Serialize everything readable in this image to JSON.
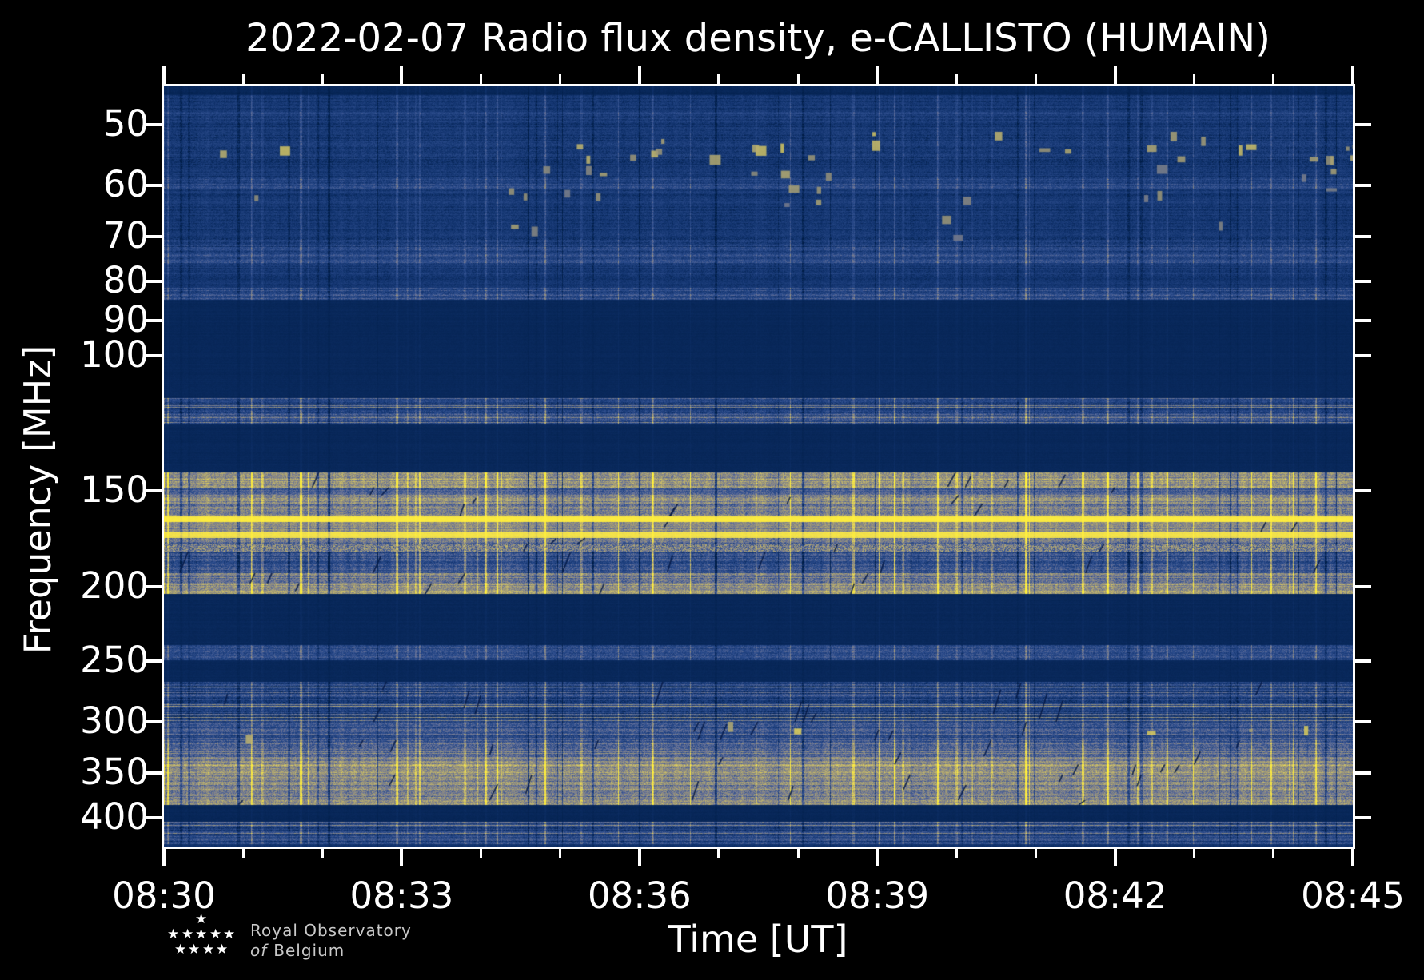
{
  "figure": {
    "background": "#000000",
    "foreground": "#ffffff"
  },
  "chart_data": {
    "type": "heatmap",
    "subtype": "radio-spectrogram",
    "title": "2022-02-07 Radio flux density, e-CALLISTO (HUMAIN)",
    "date": "2022-02-07",
    "station": "HUMAIN",
    "xlabel": "Time [UT]",
    "ylabel": "Frequency [MHz]",
    "x_axis": {
      "start": "08:30",
      "end": "08:45",
      "total_minutes": 15,
      "major_tick_minutes": 3,
      "minor_tick_minutes": 1,
      "major_ticks": [
        "08:30",
        "08:33",
        "08:36",
        "08:39",
        "08:42",
        "08:45"
      ]
    },
    "y_axis": {
      "scale": "log",
      "unit": "MHz",
      "inverted_low_at_top": true,
      "range_mhz": [
        44.6,
        436
      ],
      "ticks": [
        50,
        60,
        70,
        80,
        90,
        100,
        150,
        200,
        250,
        300,
        350,
        400
      ]
    },
    "grid": false,
    "legend": "none",
    "colormap": {
      "name": "cividis-like",
      "stops": [
        [
          0.0,
          "#001d47"
        ],
        [
          0.12,
          "#11336e"
        ],
        [
          0.3,
          "#2e4e8e"
        ],
        [
          0.45,
          "#6b7498"
        ],
        [
          0.58,
          "#999479"
        ],
        [
          0.72,
          "#c4b86d"
        ],
        [
          0.85,
          "#eedd4f"
        ],
        [
          1.0,
          "#ffef3c"
        ]
      ]
    },
    "bands": [
      {
        "f0": 44.6,
        "f1": 45.8,
        "base": 0.06,
        "row": 0.015,
        "col": 0.02,
        "px": 0.015,
        "diag": false
      },
      {
        "f0": 45.8,
        "f1": 48.2,
        "base": 0.15,
        "row": 0.05,
        "col": 0.08,
        "px": 0.06,
        "diag": false
      },
      {
        "f0": 48.2,
        "f1": 49.8,
        "base": 0.21,
        "row": 0.07,
        "col": 0.08,
        "px": 0.07,
        "diag": false
      },
      {
        "f0": 49.8,
        "f1": 51.5,
        "base": 0.15,
        "row": 0.05,
        "col": 0.08,
        "px": 0.06,
        "diag": false
      },
      {
        "f0": 51.5,
        "f1": 56.2,
        "base": 0.16,
        "row": 0.05,
        "col": 0.09,
        "px": 0.07,
        "diag": false,
        "blobs": {
          "density": 0.02,
          "value": 0.68,
          "bias": "right"
        }
      },
      {
        "f0": 56.2,
        "f1": 58.6,
        "base": 0.15,
        "row": 0.05,
        "col": 0.08,
        "px": 0.06,
        "diag": false,
        "blobs": {
          "density": 0.006,
          "value": 0.58
        }
      },
      {
        "f0": 58.6,
        "f1": 60.6,
        "base": 0.23,
        "row": 0.08,
        "col": 0.1,
        "px": 0.08,
        "diag": false
      },
      {
        "f0": 60.6,
        "f1": 63.6,
        "base": 0.16,
        "row": 0.05,
        "col": 0.08,
        "px": 0.06,
        "diag": false,
        "blobs": {
          "density": 0.008,
          "value": 0.6
        }
      },
      {
        "f0": 63.6,
        "f1": 70.4,
        "base": 0.15,
        "row": 0.05,
        "col": 0.08,
        "px": 0.06,
        "diag": false,
        "blobs": {
          "density": 0.004,
          "value": 0.55
        }
      },
      {
        "f0": 70.4,
        "f1": 73.4,
        "base": 0.2,
        "row": 0.09,
        "col": 0.1,
        "px": 0.08,
        "diag": false
      },
      {
        "f0": 73.4,
        "f1": 76.2,
        "base": 0.26,
        "row": 0.09,
        "col": 0.1,
        "px": 0.08,
        "diag": false
      },
      {
        "f0": 76.2,
        "f1": 79.0,
        "base": 0.16,
        "row": 0.05,
        "col": 0.08,
        "px": 0.06,
        "diag": false
      },
      {
        "f0": 79.0,
        "f1": 81.6,
        "base": 0.13,
        "row": 0.04,
        "col": 0.06,
        "px": 0.05,
        "diag": false
      },
      {
        "f0": 81.6,
        "f1": 84.5,
        "base": 0.28,
        "row": 0.11,
        "col": 0.1,
        "px": 0.09,
        "diag": false
      },
      {
        "f0": 84.5,
        "f1": 113.5,
        "base": 0.06,
        "row": 0.008,
        "col": 0.01,
        "px": 0.01,
        "diag": false
      },
      {
        "f0": 113.5,
        "f1": 118.0,
        "base": 0.19,
        "row": 0.07,
        "col": 0.12,
        "px": 0.09,
        "diag": false,
        "rb": 0.2
      },
      {
        "f0": 118.0,
        "f1": 123.0,
        "base": 0.27,
        "row": 0.09,
        "col": 0.14,
        "px": 0.1,
        "diag": false,
        "rb": 0.25
      },
      {
        "f0": 123.0,
        "f1": 142.0,
        "base": 0.06,
        "row": 0.008,
        "col": 0.01,
        "px": 0.01,
        "diag": false
      },
      {
        "f0": 142.0,
        "f1": 148.5,
        "base": 0.58,
        "row": 0.09,
        "col": 0.26,
        "px": 0.12,
        "diag": true
      },
      {
        "f0": 148.5,
        "f1": 152.0,
        "base": 0.37,
        "row": 0.07,
        "col": 0.15,
        "px": 0.1,
        "diag": true
      },
      {
        "f0": 152.0,
        "f1": 156.0,
        "base": 0.53,
        "row": 0.09,
        "col": 0.22,
        "px": 0.12,
        "diag": true
      },
      {
        "f0": 156.0,
        "f1": 161.8,
        "base": 0.5,
        "row": 0.09,
        "col": 0.2,
        "px": 0.12,
        "diag": true
      },
      {
        "f0": 161.8,
        "f1": 164.8,
        "base": 0.95,
        "row": 0.02,
        "col": 0.05,
        "px": 0.03,
        "diag": false
      },
      {
        "f0": 164.8,
        "f1": 169.6,
        "base": 0.54,
        "row": 0.07,
        "col": 0.18,
        "px": 0.1,
        "diag": true
      },
      {
        "f0": 169.6,
        "f1": 172.9,
        "base": 0.88,
        "row": 0.03,
        "col": 0.07,
        "px": 0.04,
        "diag": false
      },
      {
        "f0": 172.9,
        "f1": 176.0,
        "base": 0.44,
        "row": 0.11,
        "col": 0.2,
        "px": 0.12,
        "diag": true
      },
      {
        "f0": 176.0,
        "f1": 180.2,
        "base": 0.48,
        "row": 0.05,
        "col": 0.12,
        "px": 0.2,
        "diag": true
      },
      {
        "f0": 180.2,
        "f1": 192.0,
        "base": 0.3,
        "row": 0.09,
        "col": 0.22,
        "px": 0.1,
        "diag": true
      },
      {
        "f0": 192.0,
        "f1": 198.0,
        "base": 0.47,
        "row": 0.09,
        "col": 0.2,
        "px": 0.12,
        "diag": true
      },
      {
        "f0": 198.0,
        "f1": 204.5,
        "base": 0.58,
        "row": 0.09,
        "col": 0.22,
        "px": 0.12,
        "diag": true
      },
      {
        "f0": 204.5,
        "f1": 238.5,
        "base": 0.06,
        "row": 0.008,
        "col": 0.01,
        "px": 0.01,
        "diag": false
      },
      {
        "f0": 238.5,
        "f1": 249.5,
        "base": 0.27,
        "row": 0.07,
        "col": 0.1,
        "px": 0.09,
        "diag": false
      },
      {
        "f0": 249.5,
        "f1": 266.0,
        "base": 0.06,
        "row": 0.008,
        "col": 0.01,
        "px": 0.01,
        "diag": false
      },
      {
        "f0": 266.0,
        "f1": 300.0,
        "base": 0.23,
        "row": 0.11,
        "col": 0.12,
        "px": 0.09,
        "diag": true,
        "rb": 0.25
      },
      {
        "f0": 300.0,
        "f1": 317.0,
        "base": 0.32,
        "row": 0.11,
        "col": 0.12,
        "px": 0.1,
        "diag": true,
        "blobs": {
          "density": 0.004,
          "value": 0.72
        }
      },
      {
        "f0": 317.0,
        "f1": 341.0,
        "base": 0.38,
        "base2": 0.5,
        "row": 0.11,
        "col": 0.18,
        "px": 0.11,
        "diag": true
      },
      {
        "f0": 341.0,
        "f1": 351.5,
        "base": 0.6,
        "row": 0.11,
        "col": 0.22,
        "px": 0.12,
        "diag": true
      },
      {
        "f0": 351.5,
        "f1": 379.5,
        "base": 0.51,
        "row": 0.11,
        "col": 0.2,
        "px": 0.12,
        "diag": true
      },
      {
        "f0": 379.5,
        "f1": 384.5,
        "base": 0.56,
        "row": 0.09,
        "col": 0.2,
        "px": 0.12,
        "diag": true
      },
      {
        "f0": 384.5,
        "f1": 404.5,
        "base": 0.055,
        "row": 0.008,
        "col": 0.01,
        "px": 0.01,
        "diag": false
      },
      {
        "f0": 404.5,
        "f1": 432.5,
        "base": 0.23,
        "row": 0.1,
        "col": 0.12,
        "px": 0.09,
        "diag": false,
        "rb": 0.2
      },
      {
        "f0": 432.5,
        "f1": 436.0,
        "base": 0.11,
        "row": 0.02,
        "col": 0.03,
        "px": 0.03,
        "diag": false
      }
    ]
  },
  "logo": {
    "line1": "Royal Observatory",
    "line2_italic": "of",
    "line2": "Belgium"
  }
}
